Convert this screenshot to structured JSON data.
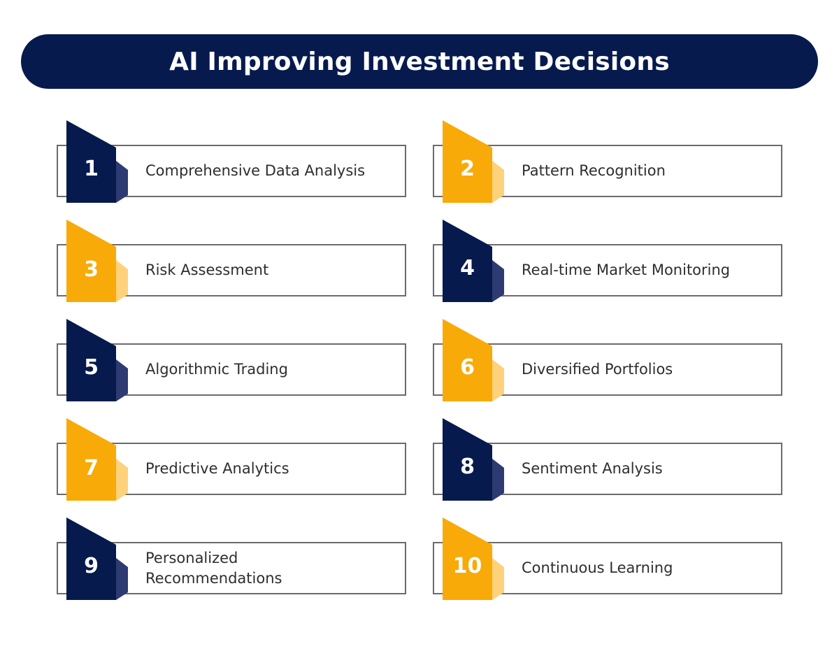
{
  "title": "AI Improving Investment Decisions",
  "colors": {
    "navy": "#061a4e",
    "navy_fold": "#2d3b72",
    "gold": "#f8aa08",
    "gold_fold": "#fdd27a",
    "border": "#6b6b6b",
    "text": "#2e2e2e"
  },
  "items": [
    {
      "number": "1",
      "label": "Comprehensive Data Analysis",
      "color": "navy"
    },
    {
      "number": "2",
      "label": "Pattern Recognition",
      "color": "gold"
    },
    {
      "number": "3",
      "label": "Risk Assessment",
      "color": "gold"
    },
    {
      "number": "4",
      "label": "Real-time Market Monitoring",
      "color": "navy"
    },
    {
      "number": "5",
      "label": "Algorithmic Trading",
      "color": "navy"
    },
    {
      "number": "6",
      "label": "Diversified Portfolios",
      "color": "gold"
    },
    {
      "number": "7",
      "label": "Predictive Analytics",
      "color": "gold"
    },
    {
      "number": "8",
      "label": "Sentiment Analysis",
      "color": "navy"
    },
    {
      "number": "9",
      "label": "Personalized Recommendations",
      "color": "navy"
    },
    {
      "number": "10",
      "label": "Continuous Learning",
      "color": "gold"
    }
  ]
}
